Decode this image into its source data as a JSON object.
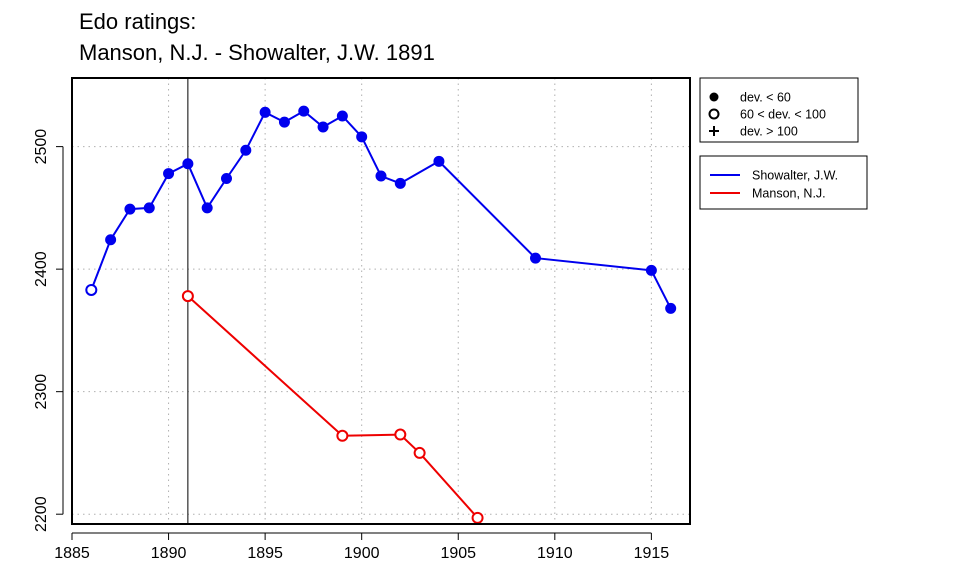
{
  "chart_data": {
    "type": "line",
    "title_line1": "Edo ratings:",
    "title_line2": "Manson, N.J. - Showalter, J.W. 1891",
    "xlabel": "",
    "ylabel": "",
    "xlim": [
      1885,
      1917
    ],
    "ylim": [
      2192,
      2556
    ],
    "x_ticks": [
      1885,
      1890,
      1895,
      1900,
      1905,
      1910,
      1915
    ],
    "y_ticks": [
      2200,
      2300,
      2400,
      2500
    ],
    "grid": true,
    "vertical_marker_x": 1891,
    "marker_legend": {
      "placement": "top-right",
      "entries": [
        {
          "symbol": "filled-circle",
          "label": "dev. < 60"
        },
        {
          "symbol": "open-circle",
          "label": "60 < dev. < 100"
        },
        {
          "symbol": "plus",
          "label": "dev. > 100"
        }
      ]
    },
    "series_legend": {
      "placement": "top-right",
      "entries": [
        {
          "label": "Showalter, J.W.",
          "color": "#0000ee"
        },
        {
          "label": "Manson, N.J.",
          "color": "#ee0000"
        }
      ]
    },
    "series": [
      {
        "name": "Showalter, J.W.",
        "color": "#0000ee",
        "points": [
          {
            "x": 1886,
            "y": 2383,
            "dev": "mid"
          },
          {
            "x": 1887,
            "y": 2424,
            "dev": "low"
          },
          {
            "x": 1888,
            "y": 2449,
            "dev": "low"
          },
          {
            "x": 1889,
            "y": 2450,
            "dev": "low"
          },
          {
            "x": 1890,
            "y": 2478,
            "dev": "low"
          },
          {
            "x": 1891,
            "y": 2486,
            "dev": "low"
          },
          {
            "x": 1892,
            "y": 2450,
            "dev": "low"
          },
          {
            "x": 1893,
            "y": 2474,
            "dev": "low"
          },
          {
            "x": 1894,
            "y": 2497,
            "dev": "low"
          },
          {
            "x": 1895,
            "y": 2528,
            "dev": "low"
          },
          {
            "x": 1896,
            "y": 2520,
            "dev": "low"
          },
          {
            "x": 1897,
            "y": 2529,
            "dev": "low"
          },
          {
            "x": 1898,
            "y": 2516,
            "dev": "low"
          },
          {
            "x": 1899,
            "y": 2525,
            "dev": "low"
          },
          {
            "x": 1900,
            "y": 2508,
            "dev": "low"
          },
          {
            "x": 1901,
            "y": 2476,
            "dev": "low"
          },
          {
            "x": 1902,
            "y": 2470,
            "dev": "low"
          },
          {
            "x": 1904,
            "y": 2488,
            "dev": "low"
          },
          {
            "x": 1909,
            "y": 2409,
            "dev": "low"
          },
          {
            "x": 1915,
            "y": 2399,
            "dev": "low"
          },
          {
            "x": 1916,
            "y": 2368,
            "dev": "low"
          }
        ]
      },
      {
        "name": "Manson, N.J.",
        "color": "#ee0000",
        "points": [
          {
            "x": 1891,
            "y": 2378,
            "dev": "mid"
          },
          {
            "x": 1899,
            "y": 2264,
            "dev": "mid"
          },
          {
            "x": 1902,
            "y": 2265,
            "dev": "mid"
          },
          {
            "x": 1903,
            "y": 2250,
            "dev": "mid"
          },
          {
            "x": 1906,
            "y": 2197,
            "dev": "mid"
          }
        ]
      }
    ]
  }
}
